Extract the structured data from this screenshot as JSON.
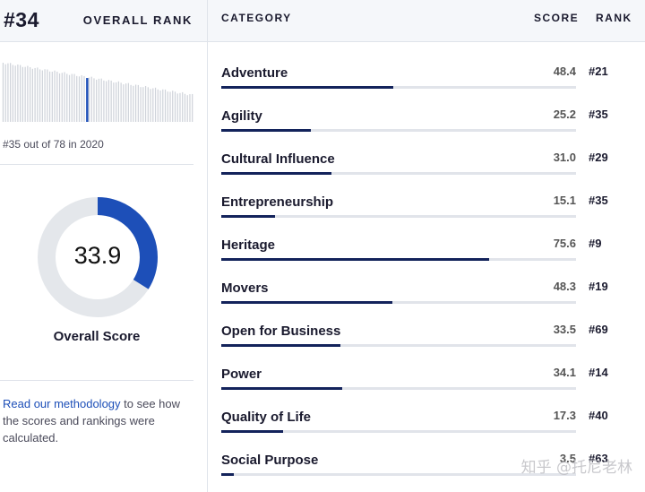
{
  "overall": {
    "rank": "#34",
    "rank_label": "OVERALL RANK",
    "caption": "#35 out of 78 in 2020",
    "total_countries": 78,
    "highlight_position": 35,
    "score": "33.9",
    "score_fraction": 0.339,
    "score_label": "Overall Score"
  },
  "methodology": {
    "link_text": "Read our methodology",
    "rest_text": " to see how the scores and rankings were calculated."
  },
  "table": {
    "header": {
      "category": "CATEGORY",
      "score": "SCORE",
      "rank": "RANK"
    },
    "rows": [
      {
        "name": "Adventure",
        "score": "48.4",
        "rank": "#21",
        "value": 48.4
      },
      {
        "name": "Agility",
        "score": "25.2",
        "rank": "#35",
        "value": 25.2
      },
      {
        "name": "Cultural Influence",
        "score": "31.0",
        "rank": "#29",
        "value": 31.0
      },
      {
        "name": "Entrepreneurship",
        "score": "15.1",
        "rank": "#35",
        "value": 15.1
      },
      {
        "name": "Heritage",
        "score": "75.6",
        "rank": "#9",
        "value": 75.6
      },
      {
        "name": "Movers",
        "score": "48.3",
        "rank": "#19",
        "value": 48.3
      },
      {
        "name": "Open for Business",
        "score": "33.5",
        "rank": "#69",
        "value": 33.5
      },
      {
        "name": "Power",
        "score": "34.1",
        "rank": "#14",
        "value": 34.1
      },
      {
        "name": "Quality of Life",
        "score": "17.3",
        "rank": "#40",
        "value": 17.3
      },
      {
        "name": "Social Purpose",
        "score": "3.5",
        "rank": "#63",
        "value": 3.5
      }
    ]
  },
  "colors": {
    "accent": "#1d4fb8",
    "bar_fill": "#13235b",
    "track": "#e1e4ea"
  },
  "watermark": "知乎 @托尼老林"
}
